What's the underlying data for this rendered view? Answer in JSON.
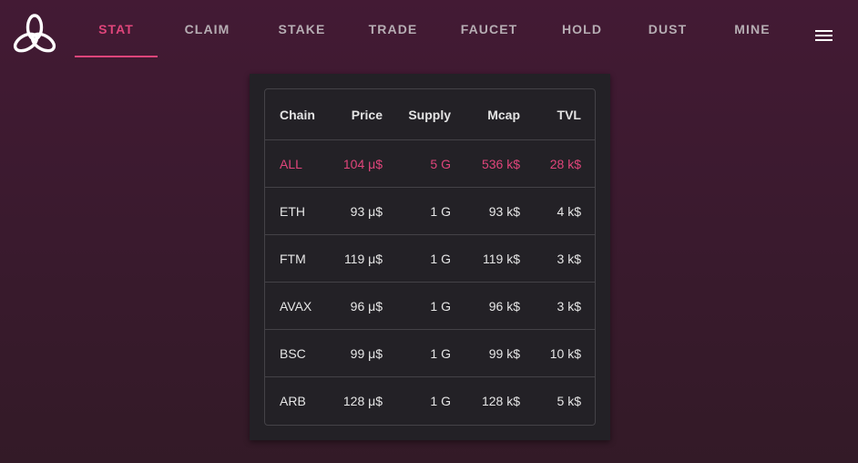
{
  "nav": {
    "tabs": [
      {
        "label": "STAT",
        "active": true
      },
      {
        "label": "CLAIM",
        "active": false
      },
      {
        "label": "STAKE",
        "active": false
      },
      {
        "label": "TRADE",
        "active": false
      },
      {
        "label": "FAUCET",
        "active": false
      },
      {
        "label": "HOLD",
        "active": false
      },
      {
        "label": "DUST",
        "active": false
      },
      {
        "label": "MINE",
        "active": false
      }
    ],
    "menu_icon": "hamburger-menu-icon",
    "logo_icon": "triquetra-logo-icon"
  },
  "colors": {
    "accent": "#e0457b",
    "background": "#3a1a2e",
    "card": "#232126"
  },
  "table": {
    "headers": [
      "Chain",
      "Price",
      "Supply",
      "Mcap",
      "TVL"
    ],
    "rows": [
      {
        "chain": "ALL",
        "price": "104 μ$",
        "supply": "5 G",
        "mcap": "536 k$",
        "tvl": "28 k$",
        "highlight": true
      },
      {
        "chain": "ETH",
        "price": "93 μ$",
        "supply": "1 G",
        "mcap": "93 k$",
        "tvl": "4 k$"
      },
      {
        "chain": "FTM",
        "price": "119 μ$",
        "supply": "1 G",
        "mcap": "119 k$",
        "tvl": "3 k$"
      },
      {
        "chain": "AVAX",
        "price": "96 μ$",
        "supply": "1 G",
        "mcap": "96 k$",
        "tvl": "3 k$"
      },
      {
        "chain": "BSC",
        "price": "99 μ$",
        "supply": "1 G",
        "mcap": "99 k$",
        "tvl": "10 k$"
      },
      {
        "chain": "ARB",
        "price": "128 μ$",
        "supply": "1 G",
        "mcap": "128 k$",
        "tvl": "5 k$"
      }
    ]
  }
}
